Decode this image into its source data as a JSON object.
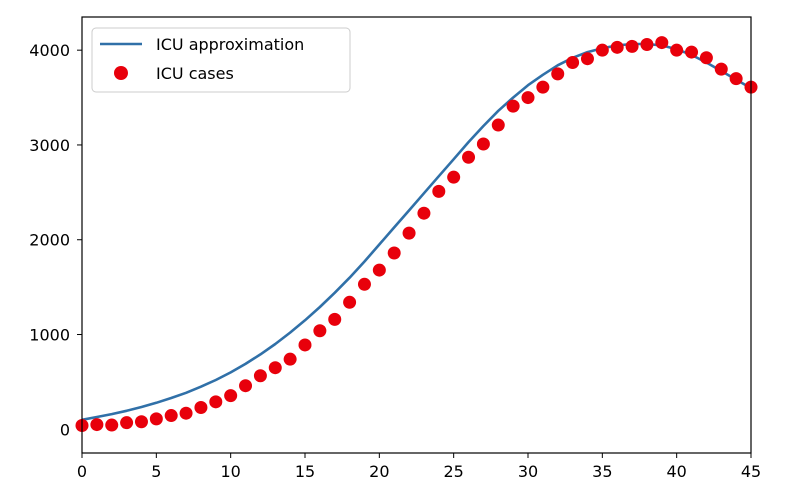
{
  "chart_data": {
    "type": "line",
    "title": "",
    "xlabel": "",
    "ylabel": "",
    "xlim": [
      0,
      45
    ],
    "ylim": [
      -250,
      4350
    ],
    "xticks": [
      0,
      5,
      10,
      15,
      20,
      25,
      30,
      35,
      40,
      45
    ],
    "yticks": [
      0,
      1000,
      2000,
      3000,
      4000
    ],
    "grid": false,
    "legend_position": "top-left",
    "series": [
      {
        "name": "ICU approximation",
        "kind": "line",
        "color": "#3070a8",
        "x": [
          0,
          1,
          2,
          3,
          4,
          5,
          6,
          7,
          8,
          9,
          10,
          11,
          12,
          13,
          14,
          15,
          16,
          17,
          18,
          19,
          20,
          21,
          22,
          23,
          24,
          25,
          26,
          27,
          28,
          29,
          30,
          31,
          32,
          33,
          34,
          35,
          36,
          37,
          38,
          39,
          40,
          41,
          42,
          43,
          44,
          45
        ],
        "y": [
          100,
          130,
          160,
          195,
          235,
          280,
          330,
          385,
          450,
          520,
          600,
          690,
          790,
          900,
          1020,
          1150,
          1290,
          1440,
          1600,
          1770,
          1950,
          2130,
          2310,
          2490,
          2670,
          2850,
          3030,
          3200,
          3360,
          3500,
          3630,
          3740,
          3840,
          3920,
          3980,
          4020,
          4050,
          4065,
          4065,
          4050,
          4010,
          3950,
          3870,
          3780,
          3690,
          3600
        ]
      },
      {
        "name": "ICU cases",
        "kind": "scatter",
        "color": "#e8000b",
        "x": [
          0,
          1,
          2,
          3,
          4,
          5,
          6,
          7,
          8,
          9,
          10,
          11,
          12,
          13,
          14,
          15,
          16,
          17,
          18,
          19,
          20,
          21,
          22,
          23,
          24,
          25,
          26,
          27,
          28,
          29,
          30,
          31,
          32,
          33,
          34,
          35,
          36,
          37,
          38,
          39,
          40,
          41,
          42,
          43,
          44,
          45
        ],
        "y": [
          40,
          50,
          45,
          70,
          80,
          110,
          145,
          170,
          230,
          290,
          355,
          460,
          565,
          650,
          740,
          890,
          1040,
          1160,
          1340,
          1530,
          1680,
          1860,
          2070,
          2280,
          2510,
          2660,
          2870,
          3010,
          3210,
          3410,
          3500,
          3610,
          3750,
          3870,
          3910,
          4000,
          4030,
          4040,
          4060,
          4080,
          4000,
          3980,
          3920,
          3800,
          3700,
          3610
        ]
      }
    ]
  }
}
